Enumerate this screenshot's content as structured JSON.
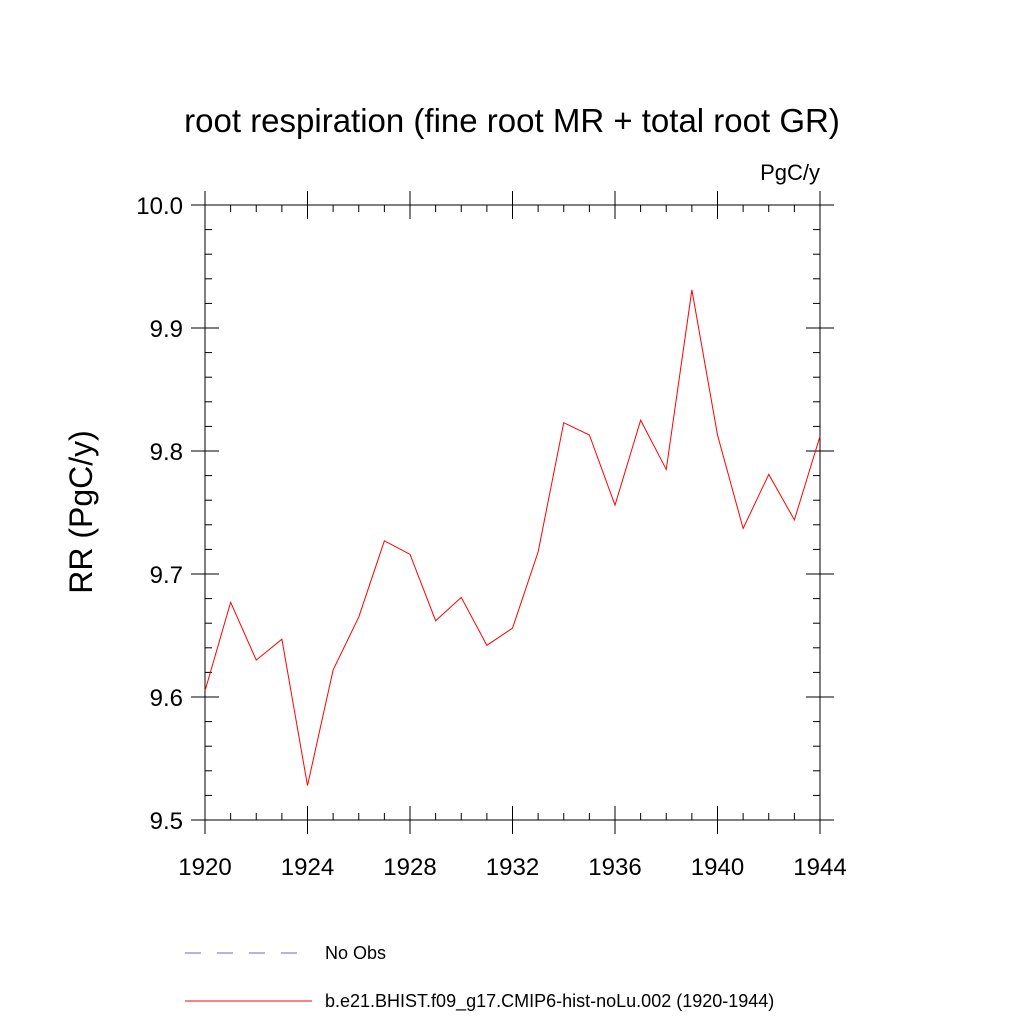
{
  "chart_data": {
    "type": "line",
    "title": "root respiration (fine root MR + total root GR)",
    "units": "PgC/y",
    "ylabel": "RR  (PgC/y)",
    "xlabel": "",
    "xlim": [
      1920,
      1944
    ],
    "ylim": [
      9.5,
      10.0
    ],
    "x_ticks": [
      1920,
      1924,
      1928,
      1932,
      1936,
      1940,
      1944
    ],
    "y_ticks": [
      "9.5",
      "9.6",
      "9.7",
      "9.8",
      "9.9",
      "10.0"
    ],
    "x_minor_step": 1,
    "y_minor_step": 0.02,
    "grid": false,
    "legend_position": "bottom",
    "series": [
      {
        "name": "No Obs",
        "color": "#6a6acc",
        "style": "dashed",
        "x": [],
        "values": []
      },
      {
        "name": "b.e21.BHIST.f09_g17.CMIP6-hist-noLu.002 (1920-1944)",
        "color": "#ff0000",
        "style": "solid",
        "x": [
          1920,
          1921,
          1922,
          1923,
          1924,
          1925,
          1926,
          1927,
          1928,
          1929,
          1930,
          1931,
          1932,
          1933,
          1934,
          1935,
          1936,
          1937,
          1938,
          1939,
          1940,
          1941,
          1942,
          1943,
          1944
        ],
        "values": [
          9.605,
          9.677,
          9.63,
          9.647,
          9.528,
          9.622,
          9.665,
          9.727,
          9.716,
          9.662,
          9.681,
          9.642,
          9.656,
          9.718,
          9.823,
          9.813,
          9.756,
          9.825,
          9.785,
          9.931,
          9.813,
          9.737,
          9.781,
          9.744,
          9.812
        ]
      }
    ]
  }
}
